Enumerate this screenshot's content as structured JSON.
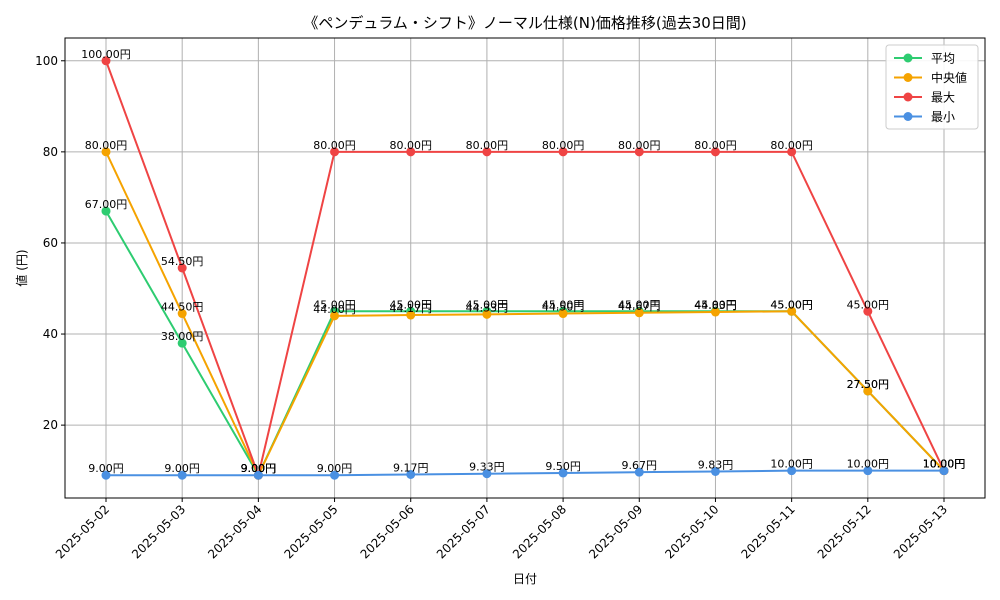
{
  "chart_data": {
    "type": "line",
    "title": "《ペンデュラム・シフト》ノーマル仕様(N)価格推移(過去30日間)",
    "xlabel": "日付",
    "ylabel": "値 (円)",
    "ylim": [
      4,
      105
    ],
    "yticks": [
      20,
      40,
      60,
      80,
      100
    ],
    "grid": true,
    "legend_position": "top-right",
    "label_suffix": "円",
    "categories": [
      "2025-05-02",
      "2025-05-03",
      "2025-05-04",
      "2025-05-05",
      "2025-05-06",
      "2025-05-07",
      "2025-05-08",
      "2025-05-09",
      "2025-05-10",
      "2025-05-11",
      "2025-05-12",
      "2025-05-13"
    ],
    "series": [
      {
        "name": "平均",
        "color": "#2ecc71",
        "values": [
          67.0,
          38.0,
          9.0,
          45.0,
          45.0,
          45.0,
          45.0,
          45.0,
          45.0,
          45.0,
          27.5,
          10.0
        ],
        "labels": [
          "67.00円",
          "38.00円",
          "9.00円",
          "45.00円",
          "45.00円",
          "45.00円",
          "45.00円",
          "45.00円",
          "45.00円",
          "45.00円",
          "27.50円",
          "10.00円"
        ]
      },
      {
        "name": "中央値",
        "color": "#f5a300",
        "values": [
          80.0,
          44.5,
          9.0,
          44.0,
          44.17,
          44.33,
          44.5,
          44.67,
          44.83,
          45.0,
          27.5,
          10.0
        ],
        "labels": [
          "80.00円",
          "44.50円",
          "9.00円",
          "44.00円",
          "44.17円",
          "44.33円",
          "44.50円",
          "44.67円",
          "44.83円",
          "45.00円",
          "27.50円",
          "10.00円"
        ]
      },
      {
        "name": "最大",
        "color": "#ef4444",
        "values": [
          100.0,
          54.5,
          9.0,
          80.0,
          80.0,
          80.0,
          80.0,
          80.0,
          80.0,
          80.0,
          45.0,
          10.0
        ],
        "labels": [
          "100.00円",
          "54.50円",
          "9.00円",
          "80.00円",
          "80.00円",
          "80.00円",
          "80.00円",
          "80.00円",
          "80.00円",
          "80.00円",
          "45.00円",
          "10.00円"
        ]
      },
      {
        "name": "最小",
        "color": "#4a90e2",
        "values": [
          9.0,
          9.0,
          9.0,
          9.0,
          9.17,
          9.33,
          9.5,
          9.67,
          9.83,
          10.0,
          10.0,
          10.0
        ],
        "labels": [
          "9.00円",
          "9.00円",
          "9.00円",
          "9.00円",
          "9.17円",
          "9.33円",
          "9.50円",
          "9.67円",
          "9.83円",
          "10.00円",
          "10.00円",
          "10.00円"
        ]
      }
    ]
  }
}
